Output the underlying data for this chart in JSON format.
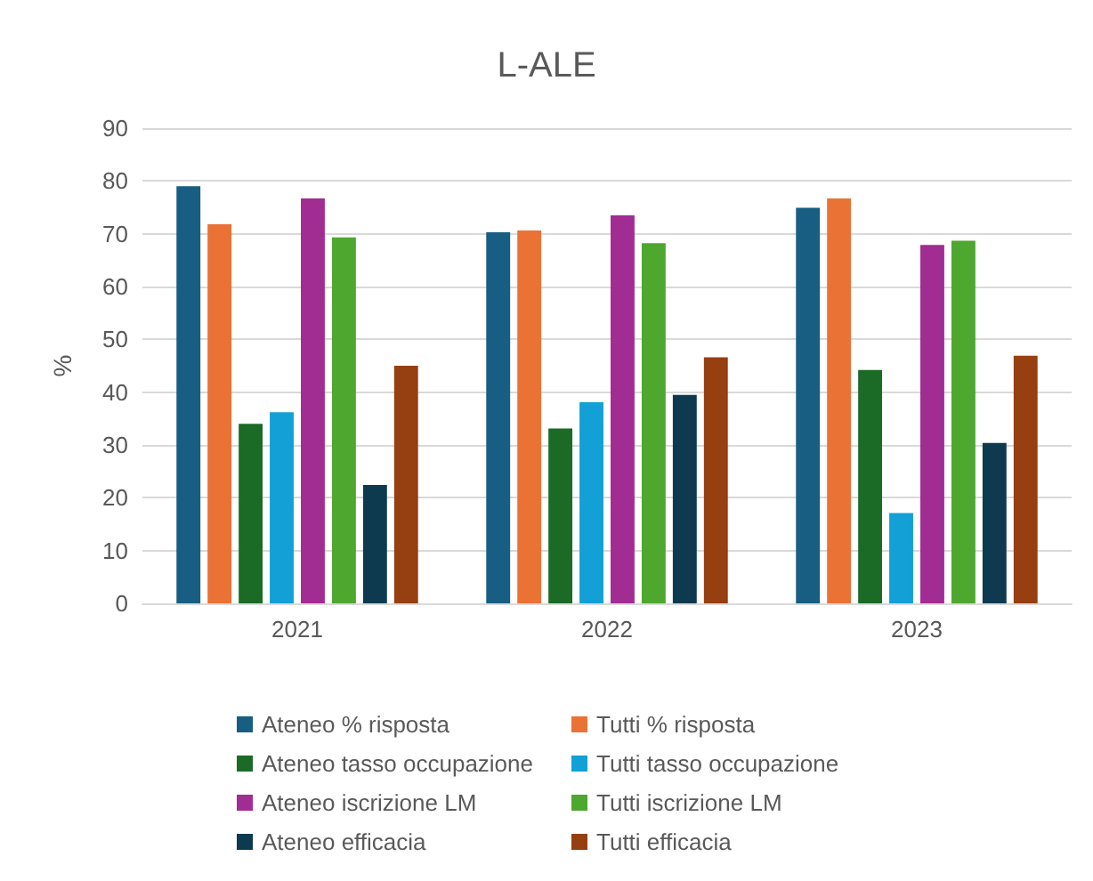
{
  "chart_data": {
    "type": "bar",
    "title": "L-ALE",
    "ylabel": "%",
    "categories": [
      "2021",
      "2022",
      "2023"
    ],
    "series": [
      {
        "name": "Ateneo % risposta",
        "color": "#175e82",
        "values": [
          79.0,
          70.3,
          74.9
        ]
      },
      {
        "name": "Tutti % risposta",
        "color": "#ea7235",
        "values": [
          71.8,
          70.6,
          76.7
        ]
      },
      {
        "name": "Ateneo tasso occupazione",
        "color": "#1b6b26",
        "values": [
          34.0,
          33.1,
          44.2
        ]
      },
      {
        "name": "Tutti tasso occupazione",
        "color": "#12a0d6",
        "values": [
          36.2,
          38.1,
          17.1
        ]
      },
      {
        "name": "Ateneo iscrizione LM",
        "color": "#a12c92",
        "values": [
          76.7,
          73.5,
          67.9
        ]
      },
      {
        "name": "Tutti iscrizione LM",
        "color": "#4ea72e",
        "values": [
          69.3,
          68.2,
          68.7
        ]
      },
      {
        "name": "Ateneo efficacia",
        "color": "#0e3a50",
        "values": [
          22.4,
          39.5,
          30.4
        ]
      },
      {
        "name": "Tutti efficacia",
        "color": "#963f11",
        "values": [
          45.0,
          46.6,
          46.9
        ]
      }
    ],
    "ylim": [
      0,
      90
    ],
    "yticks": [
      0,
      10,
      20,
      30,
      40,
      50,
      60,
      70,
      80,
      90
    ],
    "grid": "y",
    "legend": "bottom"
  }
}
